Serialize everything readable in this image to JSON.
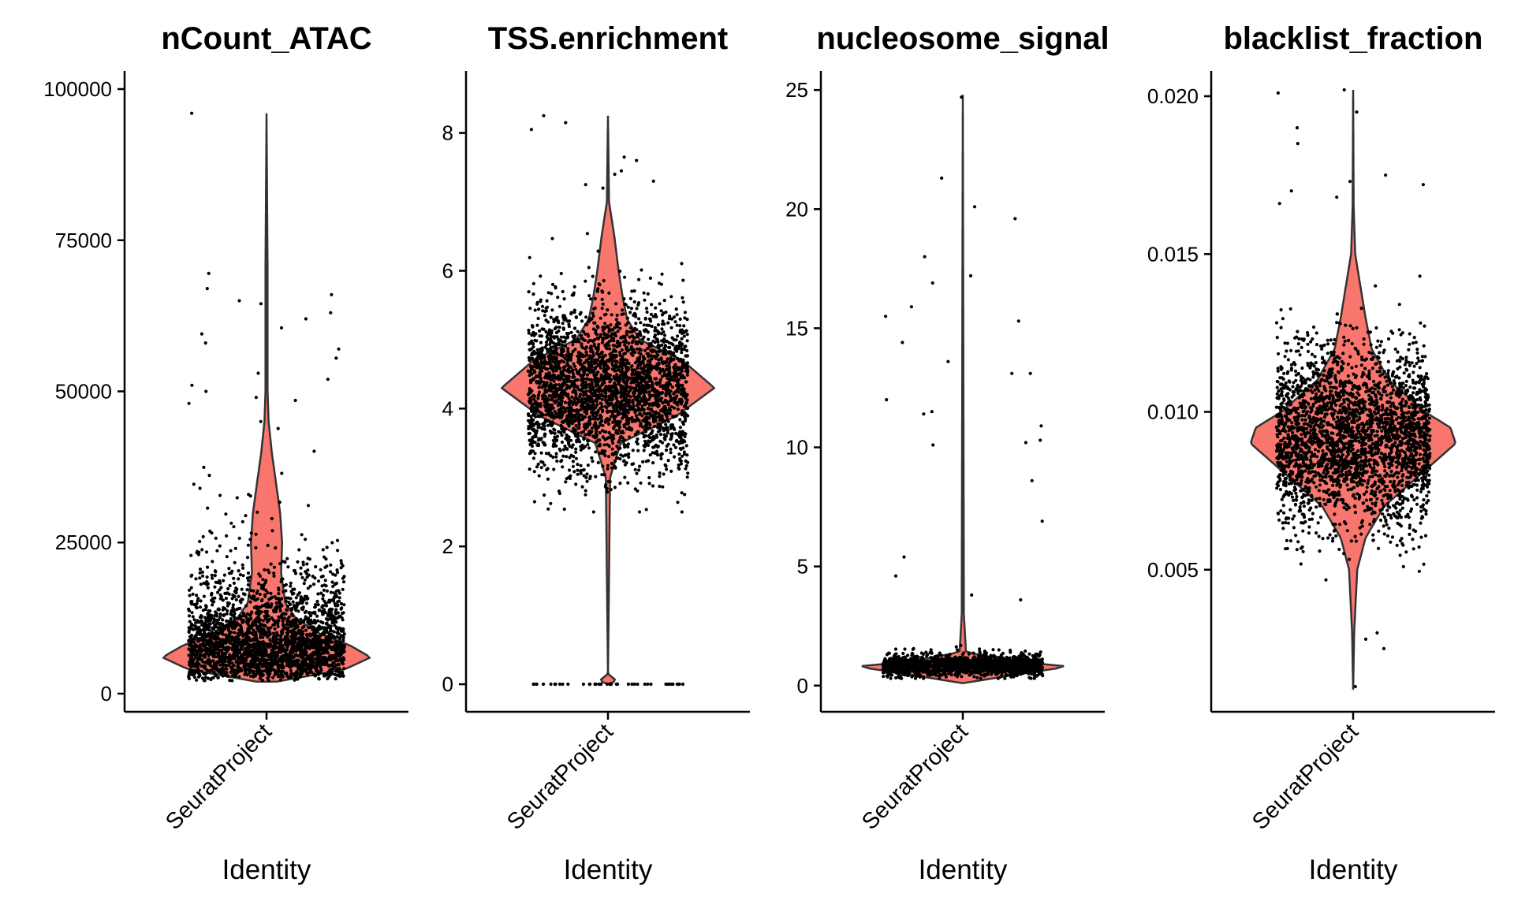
{
  "chart_data": [
    {
      "type": "violin",
      "title": "nCount_ATAC",
      "xlabel": "Identity",
      "categories": [
        "SeuratProject"
      ],
      "ylim": [
        -3000,
        103000
      ],
      "yticks": [
        0,
        25000,
        50000,
        75000,
        100000
      ],
      "ytick_labels": [
        "0",
        "25000",
        "50000",
        "75000",
        "100000"
      ],
      "violin_profile": [
        [
          2000,
          0.1
        ],
        [
          4000,
          0.75
        ],
        [
          6000,
          1.0
        ],
        [
          8000,
          0.8
        ],
        [
          10000,
          0.5
        ],
        [
          12500,
          0.28
        ],
        [
          15000,
          0.18
        ],
        [
          20000,
          0.14
        ],
        [
          25000,
          0.15
        ],
        [
          30000,
          0.13
        ],
        [
          35000,
          0.09
        ],
        [
          40000,
          0.05
        ],
        [
          45000,
          0.02
        ],
        [
          50000,
          0.01
        ],
        [
          70000,
          0.01
        ],
        [
          96000,
          0.0
        ]
      ],
      "points": {
        "count": 2600,
        "center": 7500,
        "spread": 9000,
        "min": 2000,
        "max": 45000,
        "skew": "right",
        "outliers": [
          96000,
          69500,
          67000,
          66000,
          65000,
          64500,
          63000,
          62000,
          60500,
          59500,
          58000,
          57000,
          55500,
          53000,
          52000,
          51000,
          50000,
          49000,
          48500,
          48000
        ]
      }
    },
    {
      "type": "violin",
      "title": "TSS.enrichment",
      "xlabel": "Identity",
      "categories": [
        "SeuratProject"
      ],
      "ylim": [
        -0.4,
        8.9
      ],
      "yticks": [
        0,
        2,
        4,
        6,
        8
      ],
      "ytick_labels": [
        "0",
        "2",
        "4",
        "6",
        "8"
      ],
      "violin_profile": [
        [
          0.0,
          0.0
        ],
        [
          0.05,
          0.08
        ],
        [
          0.15,
          0.0
        ],
        [
          3.0,
          0.02
        ],
        [
          3.5,
          0.12
        ],
        [
          3.9,
          0.65
        ],
        [
          4.3,
          1.0
        ],
        [
          4.7,
          0.7
        ],
        [
          5.0,
          0.3
        ],
        [
          5.3,
          0.18
        ],
        [
          5.6,
          0.14
        ],
        [
          6.0,
          0.1
        ],
        [
          6.5,
          0.06
        ],
        [
          7.0,
          0.01
        ],
        [
          8.25,
          0.0
        ]
      ],
      "points": {
        "count": 3000,
        "center": 4.3,
        "spread": 0.6,
        "min": 2.5,
        "max": 7.0,
        "zeros": 40,
        "outliers": [
          8.25,
          8.15,
          8.05,
          7.65,
          7.6,
          7.45,
          7.4,
          7.3,
          7.25,
          7.2
        ]
      }
    },
    {
      "type": "violin",
      "title": "nucleosome_signal",
      "xlabel": "Identity",
      "categories": [
        "SeuratProject"
      ],
      "ylim": [
        -1.1,
        25.8
      ],
      "yticks": [
        0,
        5,
        10,
        15,
        20,
        25
      ],
      "ytick_labels": [
        "0",
        "5",
        "10",
        "15",
        "20",
        "25"
      ],
      "violin_profile": [
        [
          0.1,
          0.0
        ],
        [
          0.6,
          0.7
        ],
        [
          0.8,
          1.0
        ],
        [
          1.0,
          0.5
        ],
        [
          1.4,
          0.03
        ],
        [
          3,
          0.01
        ],
        [
          24.8,
          0.0
        ]
      ],
      "points": {
        "count": 1800,
        "center": 0.85,
        "spread": 0.22,
        "min": 0.3,
        "max": 2.8,
        "outliers": [
          24.7,
          21.3,
          20.1,
          19.6,
          18.0,
          17.2,
          16.9,
          15.9,
          15.5,
          15.3,
          14.4,
          13.6,
          13.1,
          13.1,
          12.0,
          11.5,
          11.4,
          10.9,
          10.3,
          10.2,
          10.1,
          8.6,
          6.9,
          5.4,
          4.6,
          3.8,
          3.6
        ]
      }
    },
    {
      "type": "violin",
      "title": "blacklist_fraction",
      "xlabel": "Identity",
      "categories": [
        "SeuratProject"
      ],
      "ylim": [
        0.0005,
        0.0208
      ],
      "yticks": [
        0.005,
        0.01,
        0.015,
        0.02
      ],
      "ytick_labels": [
        "0.005",
        "0.010",
        "0.015",
        "0.020"
      ],
      "violin_profile": [
        [
          0.0012,
          0.0
        ],
        [
          0.003,
          0.01
        ],
        [
          0.005,
          0.04
        ],
        [
          0.006,
          0.12
        ],
        [
          0.007,
          0.3
        ],
        [
          0.008,
          0.65
        ],
        [
          0.009,
          1.0
        ],
        [
          0.0095,
          0.95
        ],
        [
          0.01,
          0.7
        ],
        [
          0.011,
          0.35
        ],
        [
          0.012,
          0.18
        ],
        [
          0.013,
          0.12
        ],
        [
          0.014,
          0.07
        ],
        [
          0.015,
          0.02
        ],
        [
          0.0165,
          0.005
        ],
        [
          0.0202,
          0.0
        ]
      ],
      "points": {
        "count": 2800,
        "center": 0.0092,
        "spread": 0.0014,
        "min": 0.0045,
        "max": 0.0155,
        "outliers": [
          0.0202,
          0.0201,
          0.0195,
          0.019,
          0.0185,
          0.0175,
          0.0173,
          0.0172,
          0.017,
          0.0168,
          0.0166,
          0.003,
          0.0028,
          0.0025,
          0.0013
        ]
      }
    }
  ],
  "style": {
    "violin_fill": "#F8766D",
    "violin_stroke": "#333333",
    "point_color": "#000000",
    "axis_color": "#000000"
  }
}
